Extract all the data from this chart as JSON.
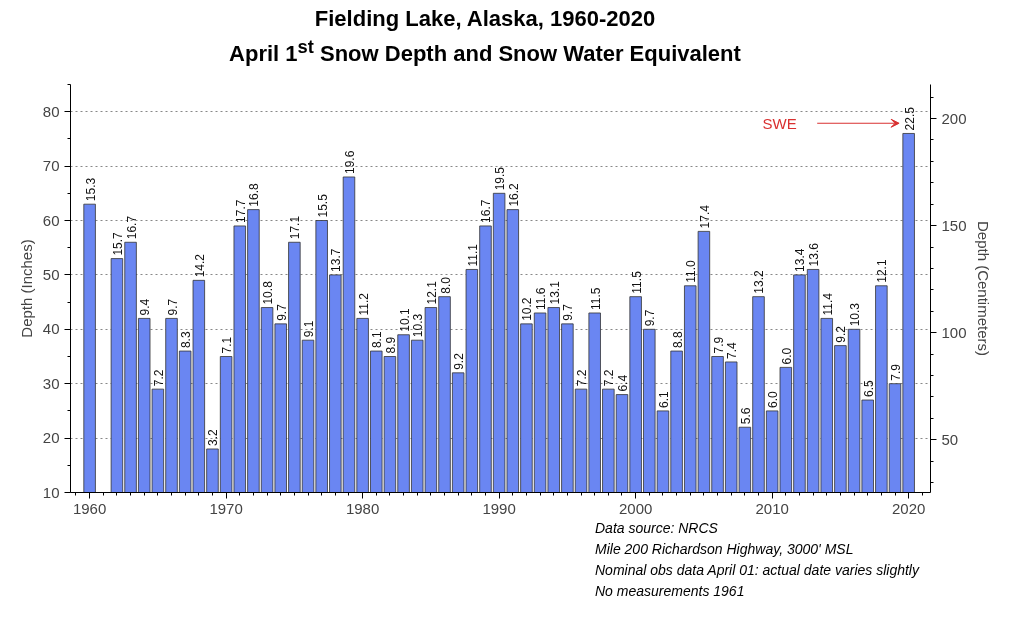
{
  "chart_data": {
    "type": "bar",
    "title": "Fielding Lake, Alaska, 1960-2020",
    "subtitle": "April 1$^{st}$ Snow Depth and Snow Water Equivalent",
    "ylabel": "Depth (Inches)",
    "y2label": "Depth (Centimeters)",
    "x": [
      1960,
      1961,
      1962,
      1963,
      1964,
      1965,
      1966,
      1967,
      1968,
      1969,
      1970,
      1971,
      1972,
      1973,
      1974,
      1975,
      1976,
      1977,
      1978,
      1979,
      1980,
      1981,
      1982,
      1983,
      1984,
      1985,
      1986,
      1987,
      1988,
      1989,
      1990,
      1991,
      1992,
      1993,
      1994,
      1995,
      1996,
      1997,
      1998,
      1999,
      2000,
      2001,
      2002,
      2003,
      2004,
      2005,
      2006,
      2007,
      2008,
      2009,
      2010,
      2011,
      2012,
      2013,
      2014,
      2015,
      2016,
      2017,
      2018,
      2019,
      2020
    ],
    "values": [
      63,
      null,
      53,
      56,
      42,
      29,
      42,
      36,
      49,
      18,
      35,
      59,
      62,
      44,
      41,
      56,
      38,
      60,
      50,
      68,
      42,
      36,
      35,
      39,
      38,
      44,
      46,
      32,
      51,
      59,
      65,
      62,
      41,
      43,
      44,
      41,
      29,
      43,
      29,
      28,
      46,
      40,
      25,
      36,
      48,
      58,
      35,
      34,
      22,
      46,
      25,
      33,
      50,
      51,
      42,
      37,
      40,
      27,
      48,
      30,
      76
    ],
    "color": "#6a86f2",
    "xlim": [
      1958.6,
      2021.6
    ],
    "xticks": [
      1960,
      1970,
      1980,
      1990,
      2000,
      2010,
      2020
    ],
    "ylim": [
      10,
      85
    ],
    "yticks": [
      10,
      20,
      30,
      40,
      50,
      60,
      70,
      80
    ],
    "y2lim": [
      25.4,
      215.9
    ],
    "y2ticks": [
      50,
      100,
      150,
      200
    ],
    "grid": "y",
    "annotations": [
      "SWE",
      "Data source: NRCS",
      "Mile 200 Richardson Highway, 3000' MSL",
      "Nominal obs data April 01: actual date varies slightly",
      "No measurements 1961",
      {
        "text": "15.3",
        "x": 1960,
        "y": 63
      },
      {
        "text": "15.7",
        "x": 1962,
        "y": 53
      },
      {
        "text": "16.7",
        "x": 1963,
        "y": 56
      },
      {
        "text": "9.4",
        "x": 1964,
        "y": 42
      },
      {
        "text": "7.2",
        "x": 1965,
        "y": 29
      },
      {
        "text": "9.7",
        "x": 1966,
        "y": 42
      },
      {
        "text": "8.3",
        "x": 1967,
        "y": 36
      },
      {
        "text": "14.2",
        "x": 1968,
        "y": 49
      },
      {
        "text": "3.2",
        "x": 1969,
        "y": 18
      },
      {
        "text": "7.1",
        "x": 1970,
        "y": 35
      },
      {
        "text": "17.7",
        "x": 1971,
        "y": 59
      },
      {
        "text": "16.8",
        "x": 1972,
        "y": 62
      },
      {
        "text": "10.8",
        "x": 1973,
        "y": 44
      },
      {
        "text": "9.7",
        "x": 1974,
        "y": 41
      },
      {
        "text": "17.1",
        "x": 1975,
        "y": 56
      },
      {
        "text": "9.1",
        "x": 1976,
        "y": 38
      },
      {
        "text": "15.5",
        "x": 1977,
        "y": 60
      },
      {
        "text": "13.7",
        "x": 1978,
        "y": 50
      },
      {
        "text": "19.6",
        "x": 1979,
        "y": 68
      },
      {
        "text": "11.2",
        "x": 1980,
        "y": 42
      },
      {
        "text": "8.1",
        "x": 1981,
        "y": 36
      },
      {
        "text": "8.9",
        "x": 1982,
        "y": 35
      },
      {
        "text": "10.1",
        "x": 1983,
        "y": 39
      },
      {
        "text": "10.3",
        "x": 1984,
        "y": 38
      },
      {
        "text": "12.1",
        "x": 1985,
        "y": 44
      },
      {
        "text": "8.0",
        "x": 1986,
        "y": 46
      },
      {
        "text": "9.2",
        "x": 1987,
        "y": 32
      },
      {
        "text": "11.1",
        "x": 1988,
        "y": 51
      },
      {
        "text": "16.7",
        "x": 1989,
        "y": 59
      },
      {
        "text": "19.5",
        "x": 1990,
        "y": 65
      },
      {
        "text": "16.2",
        "x": 1991,
        "y": 62
      },
      {
        "text": "10.2",
        "x": 1992,
        "y": 41
      },
      {
        "text": "11.6",
        "x": 1993,
        "y": 43
      },
      {
        "text": "13.1",
        "x": 1994,
        "y": 44
      },
      {
        "text": "9.7",
        "x": 1995,
        "y": 41
      },
      {
        "text": "7.2",
        "x": 1996,
        "y": 29
      },
      {
        "text": "11.5",
        "x": 1997,
        "y": 43
      },
      {
        "text": "7.2",
        "x": 1998,
        "y": 29
      },
      {
        "text": "6.4",
        "x": 1999,
        "y": 28
      },
      {
        "text": "11.5",
        "x": 2000,
        "y": 46
      },
      {
        "text": "9.7",
        "x": 2001,
        "y": 40
      },
      {
        "text": "6.1",
        "x": 2002,
        "y": 25
      },
      {
        "text": "8.8",
        "x": 2003,
        "y": 36
      },
      {
        "text": "11.0",
        "x": 2004,
        "y": 48
      },
      {
        "text": "17.4",
        "x": 2005,
        "y": 58
      },
      {
        "text": "7.9",
        "x": 2006,
        "y": 35
      },
      {
        "text": "7.4",
        "x": 2007,
        "y": 34
      },
      {
        "text": "5.6",
        "x": 2008,
        "y": 22
      },
      {
        "text": "13.2",
        "x": 2009,
        "y": 46
      },
      {
        "text": "6.0",
        "x": 2010,
        "y": 25
      },
      {
        "text": "6.0",
        "x": 2011,
        "y": 33
      },
      {
        "text": "13.4",
        "x": 2012,
        "y": 50
      },
      {
        "text": "13.6",
        "x": 2013,
        "y": 51
      },
      {
        "text": "11.4",
        "x": 2014,
        "y": 42
      },
      {
        "text": "9.2",
        "x": 2015,
        "y": 37
      },
      {
        "text": "10.3",
        "x": 2016,
        "y": 40
      },
      {
        "text": "6.5",
        "x": 2017,
        "y": 27
      },
      {
        "text": "12.1",
        "x": 2018,
        "y": 48
      },
      {
        "text": "7.9",
        "x": 2019,
        "y": 30
      },
      {
        "text": "22.5",
        "x": 2020,
        "y": 76
      }
    ]
  }
}
